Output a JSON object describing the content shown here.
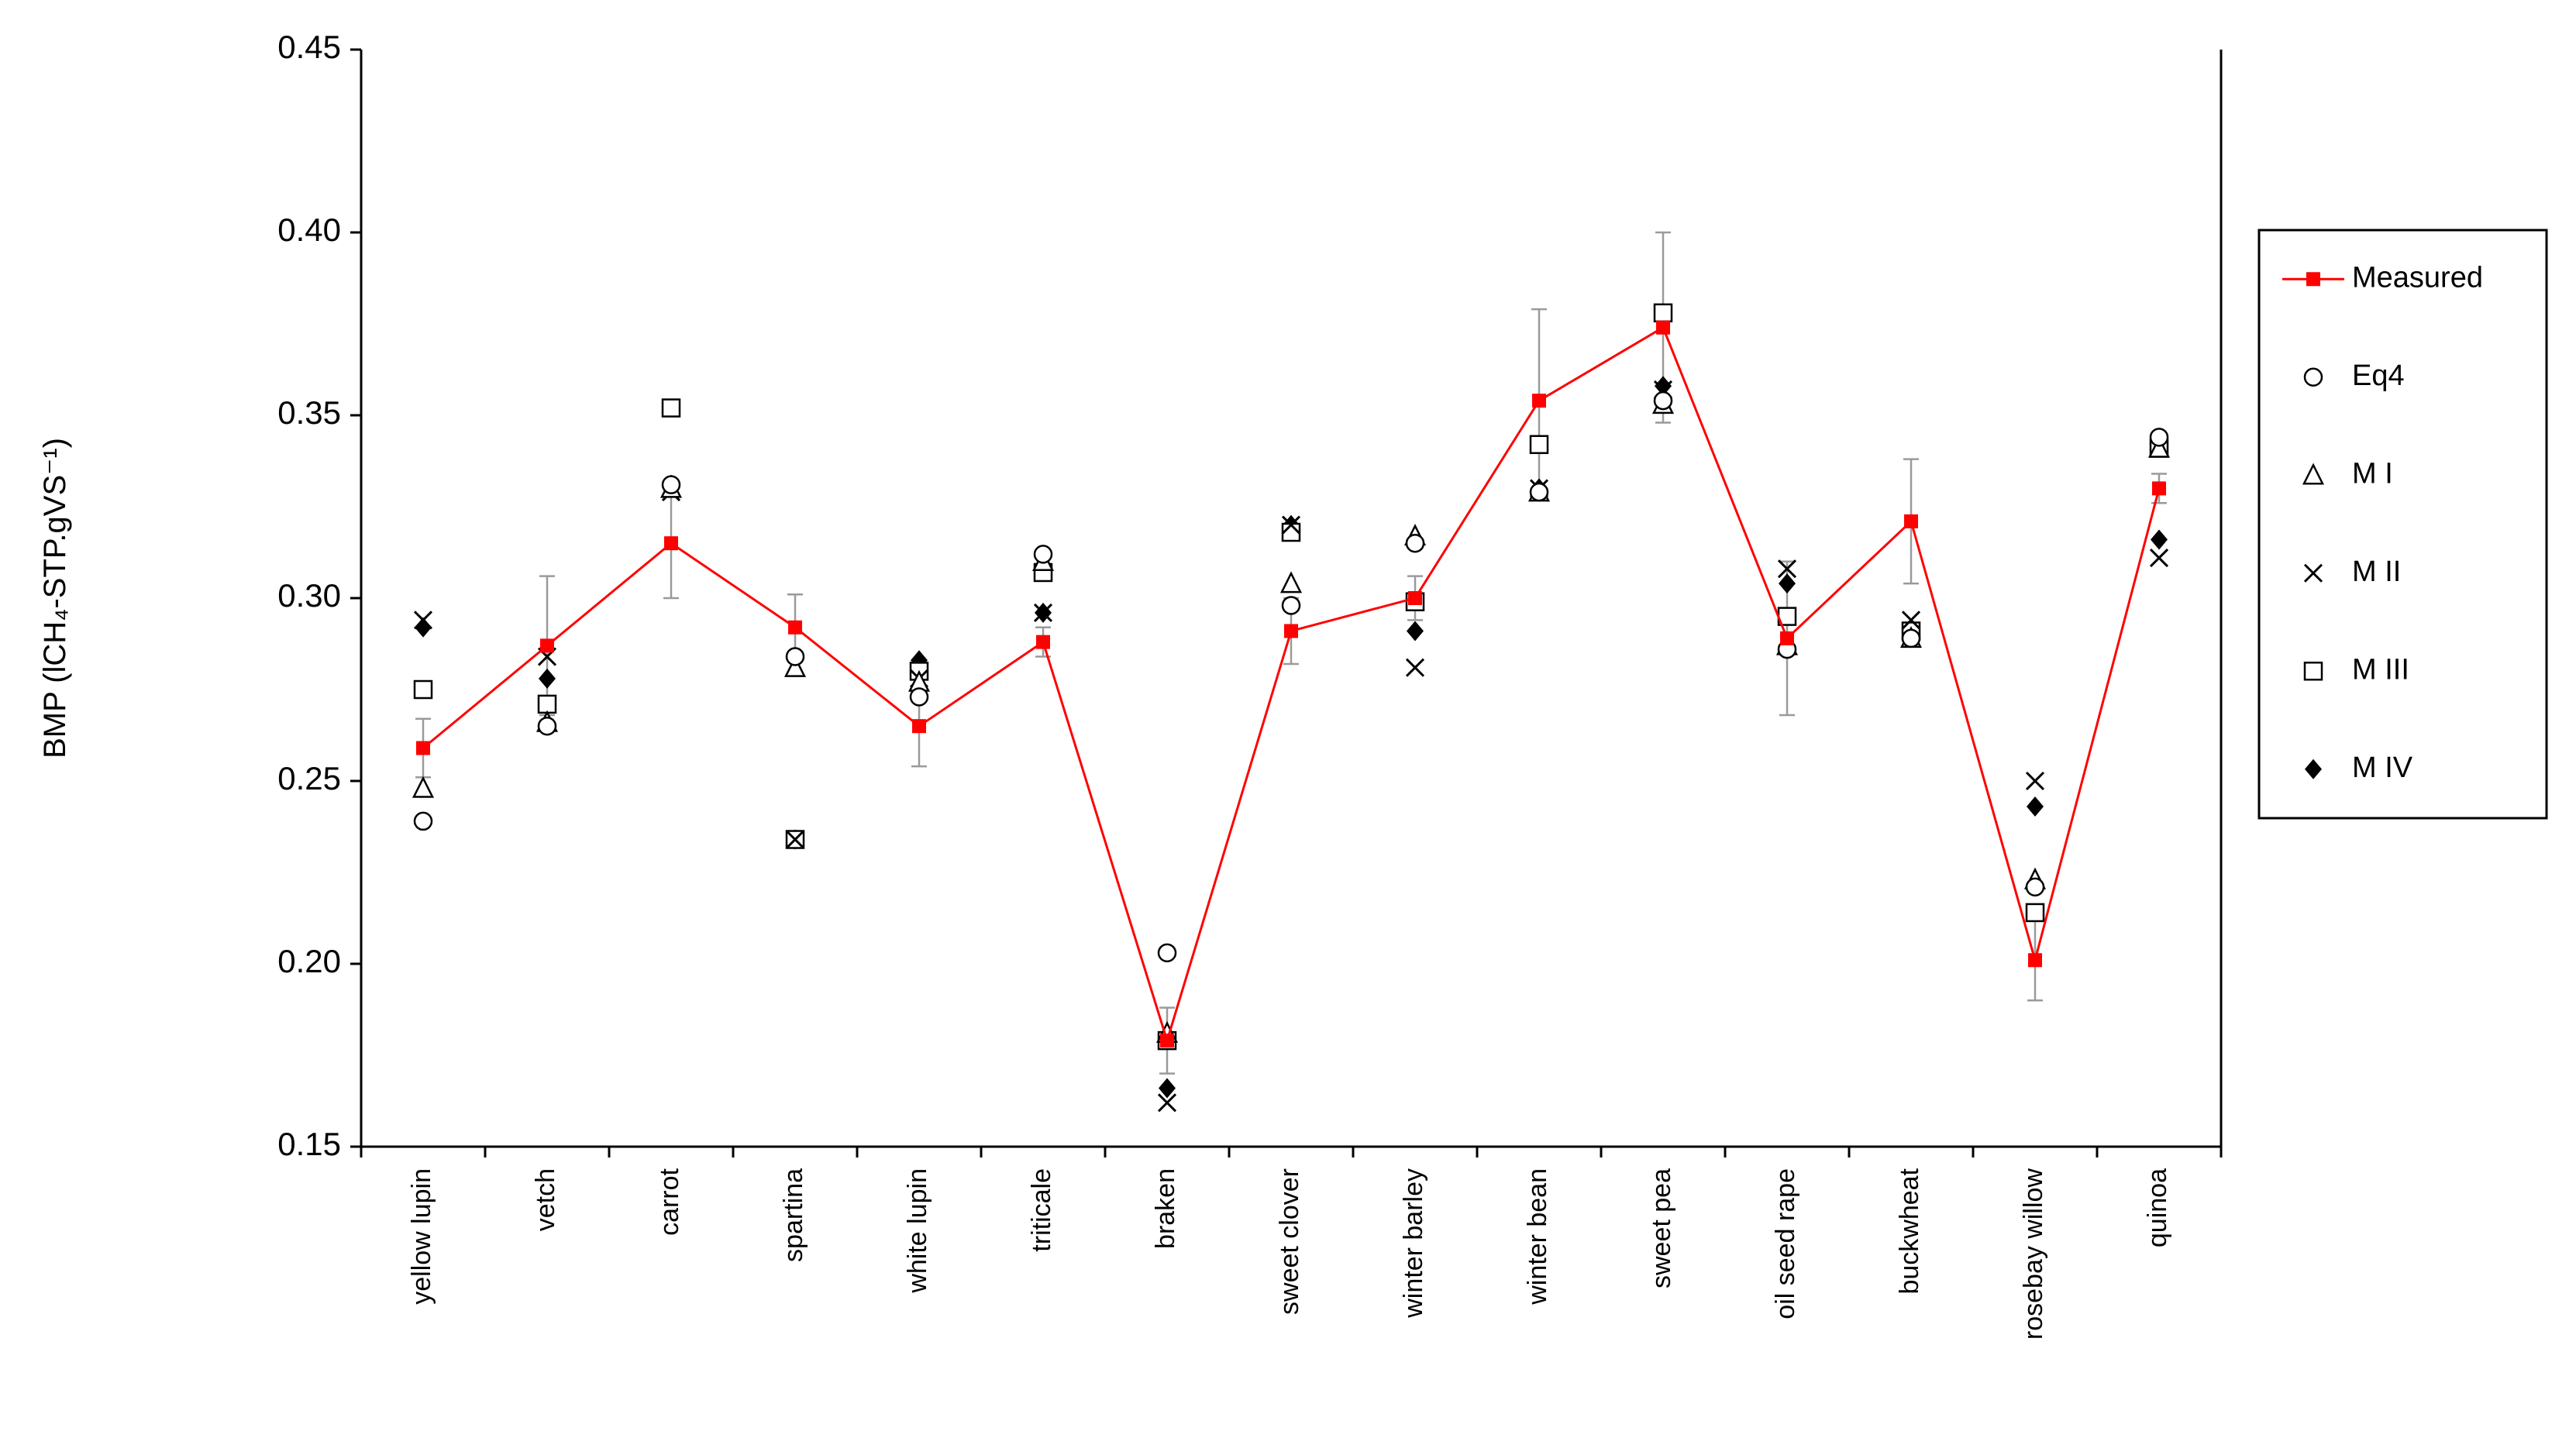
{
  "chart_data": {
    "type": "scatter-line",
    "y_label": "BMP (lCH₄-STP.gVS⁻¹)",
    "categories": [
      "yellow lupin",
      "vetch",
      "carrot",
      "spartina",
      "white lupin",
      "triticale",
      "braken",
      "sweet clover",
      "winter barley",
      "winter bean",
      "sweet pea",
      "oil seed rape",
      "buckwheat",
      "rosebay willow",
      "quinoa"
    ],
    "ylim": [
      0.15,
      0.45
    ],
    "yticks": [
      0.15,
      {
        "value": 0.2,
        "label": "0.20"
      },
      0.25,
      {
        "value": 0.3,
        "label": "0.30"
      },
      0.35,
      {
        "value": 0.4,
        "label": "0.40"
      },
      0.45
    ],
    "legend": "right",
    "series": [
      {
        "name": "Measured",
        "color": "#ff0000",
        "marker": "square-filled",
        "line": true,
        "values": [
          0.259,
          0.287,
          0.315,
          0.292,
          0.265,
          0.288,
          0.179,
          0.291,
          0.3,
          0.354,
          0.374,
          0.289,
          0.321,
          0.201,
          0.33
        ],
        "errors": [
          0.008,
          0.019,
          0.015,
          0.009,
          0.011,
          0.004,
          0.009,
          0.009,
          0.006,
          0.025,
          0.026,
          0.021,
          0.017,
          0.011,
          0.004
        ]
      },
      {
        "name": "Eq4",
        "color": "#000000",
        "marker": "circle",
        "values": [
          0.239,
          0.265,
          0.331,
          0.284,
          0.273,
          0.312,
          0.203,
          0.298,
          0.315,
          0.329,
          0.354,
          0.286,
          0.289,
          0.221,
          0.344
        ]
      },
      {
        "name": "M I",
        "color": "#000000",
        "marker": "triangle",
        "values": [
          0.248,
          0.266,
          0.33,
          0.281,
          0.277,
          0.31,
          0.181,
          0.304,
          0.317,
          0.329,
          0.353,
          0.287,
          0.289,
          0.223,
          0.341
        ]
      },
      {
        "name": "M II",
        "color": "#000000",
        "marker": "x",
        "values": [
          0.294,
          0.284,
          0.329,
          0.234,
          0.278,
          0.296,
          0.162,
          0.32,
          0.281,
          0.33,
          0.357,
          0.308,
          0.294,
          0.25,
          0.311
        ]
      },
      {
        "name": "M III",
        "color": "#000000",
        "marker": "square",
        "values": [
          0.275,
          0.271,
          0.352,
          0.234,
          0.28,
          0.307,
          0.179,
          0.318,
          0.299,
          0.342,
          0.378,
          0.295,
          0.291,
          0.214,
          0.341
        ]
      },
      {
        "name": "M IV",
        "color": "#000000",
        "marker": "diamond",
        "values": [
          0.292,
          0.278,
          0.331,
          0.234,
          0.283,
          0.296,
          0.166,
          0.32,
          0.291,
          0.33,
          0.358,
          0.304,
          0.291,
          0.243,
          0.316
        ]
      }
    ]
  }
}
